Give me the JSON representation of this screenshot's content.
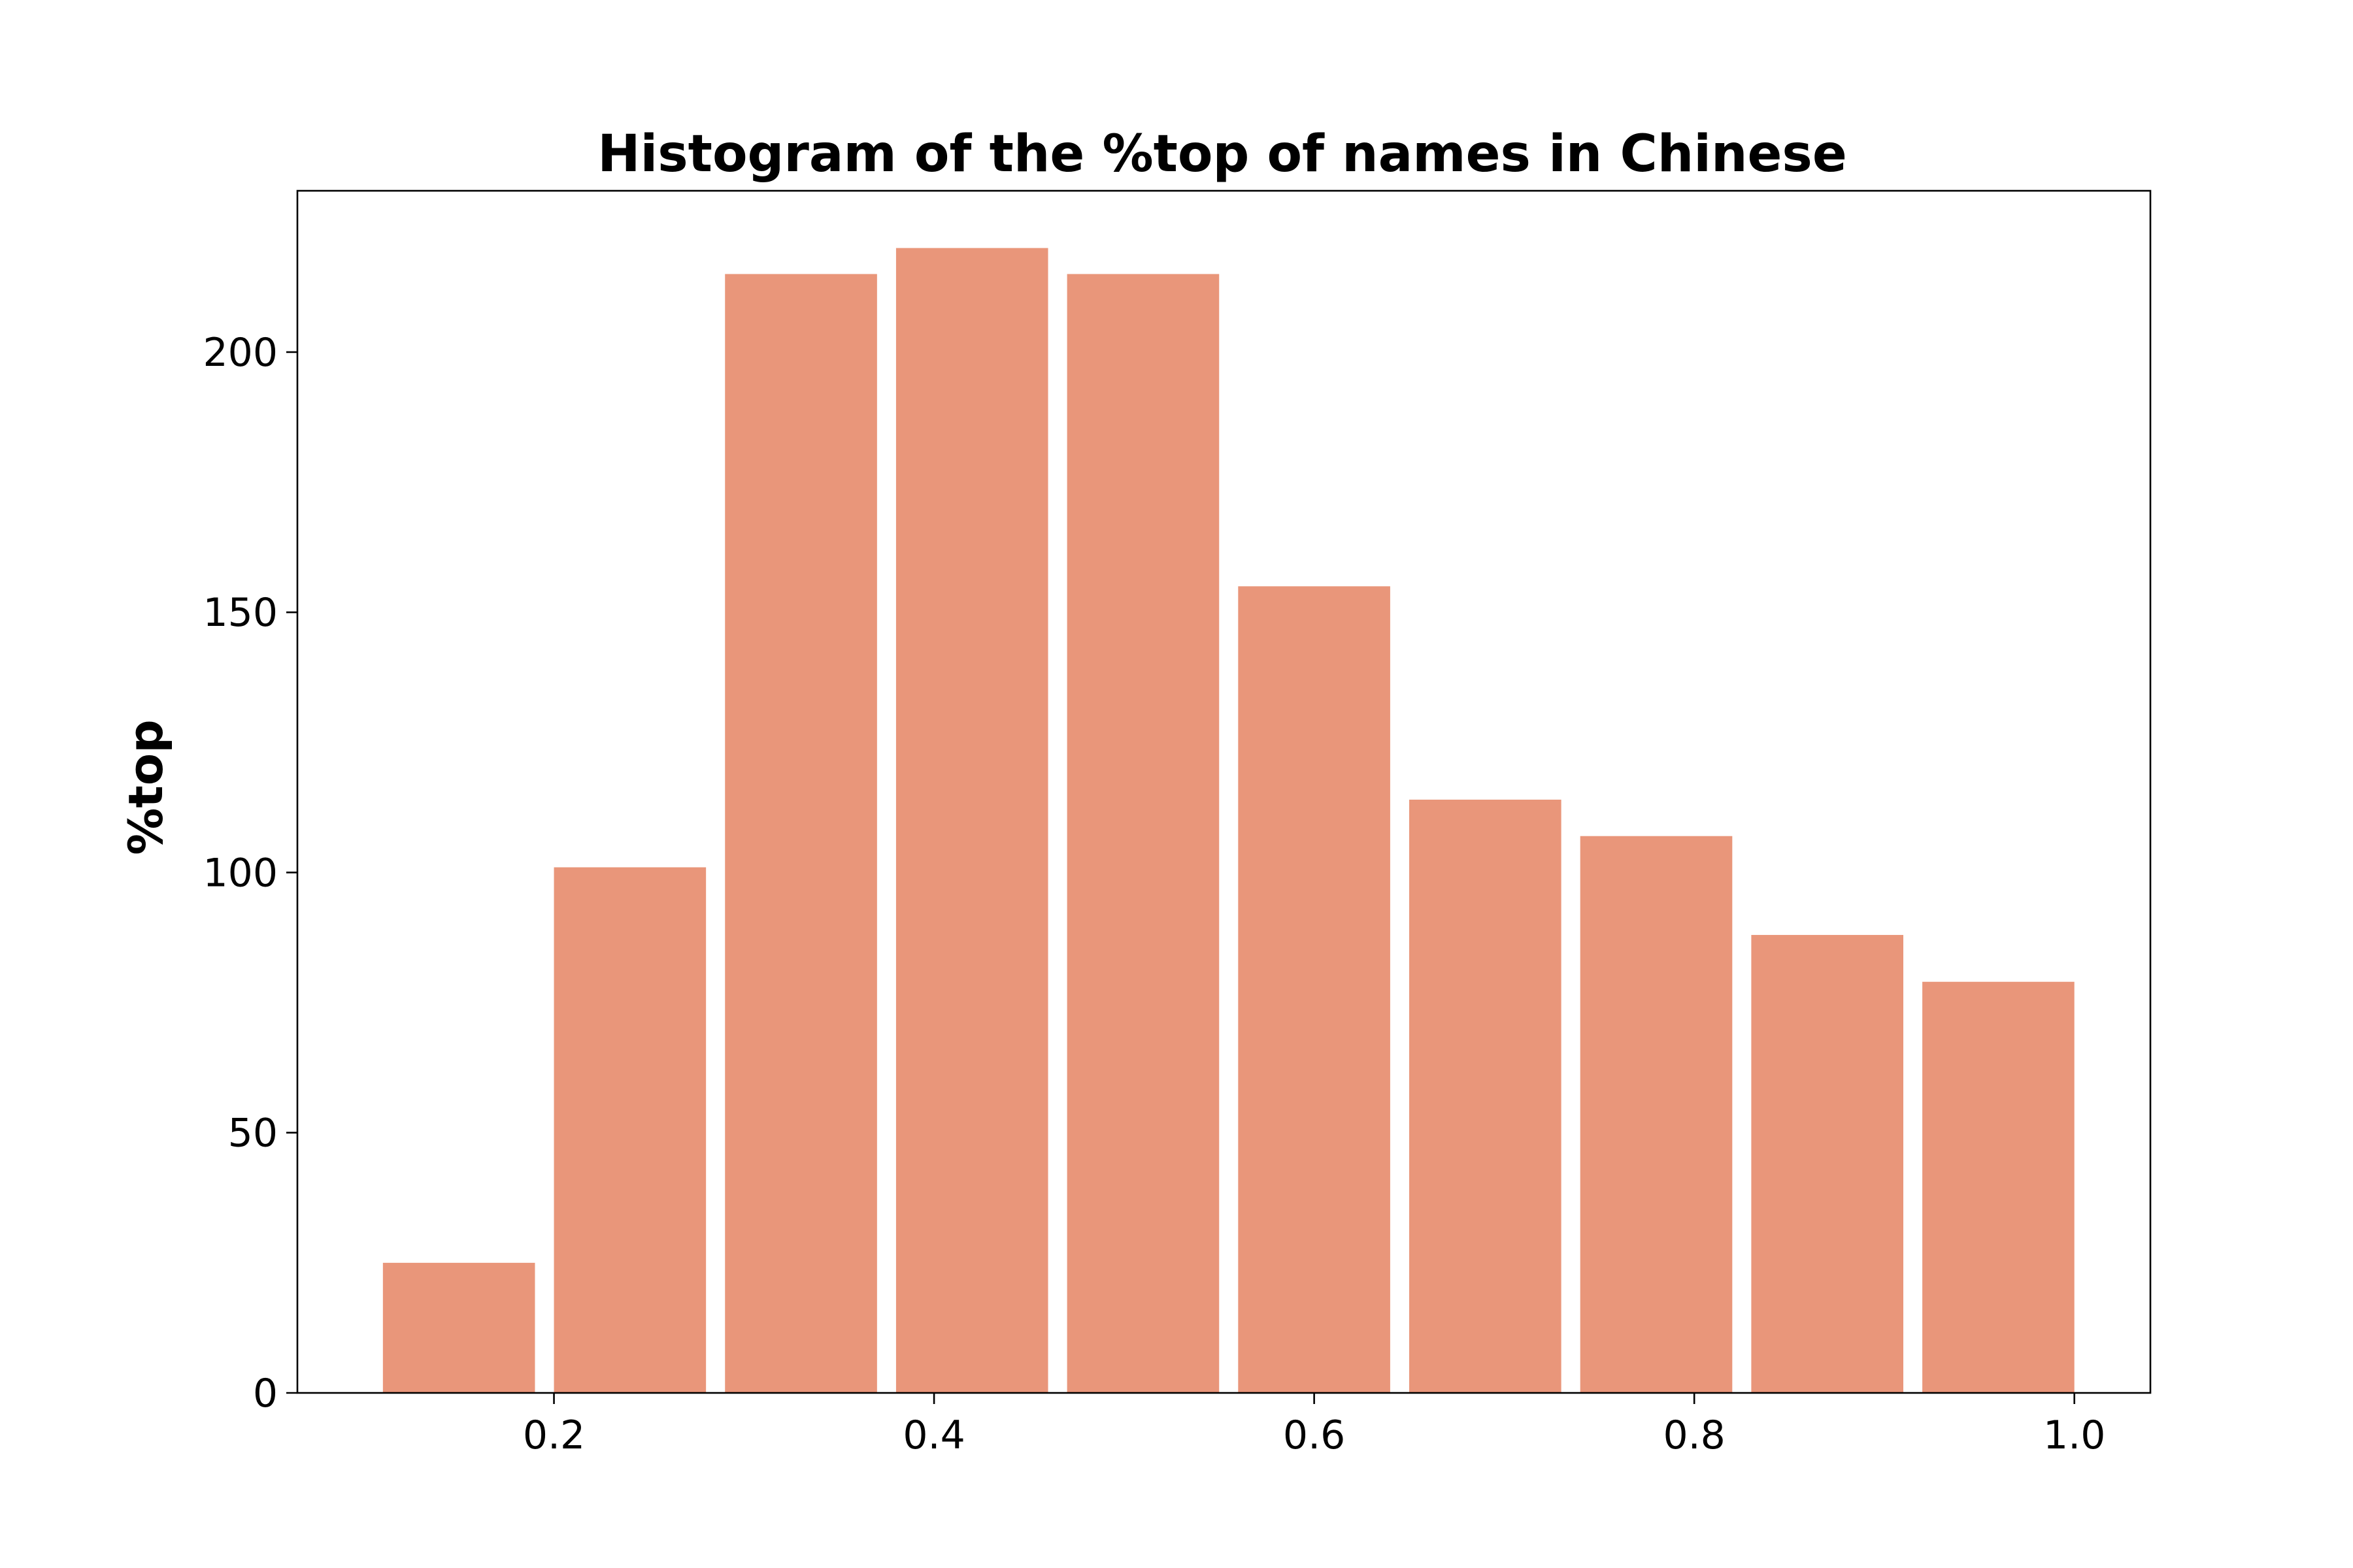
{
  "chart_data": {
    "type": "bar",
    "title": "Histogram of the %top of names in Chinese",
    "xlabel": "",
    "ylabel": "%top",
    "bins": [
      {
        "x0": 0.11,
        "x1": 0.19,
        "value": 25
      },
      {
        "x0": 0.2,
        "x1": 0.28,
        "value": 101
      },
      {
        "x0": 0.29,
        "x1": 0.37,
        "value": 215
      },
      {
        "x0": 0.38,
        "x1": 0.46,
        "value": 220
      },
      {
        "x0": 0.47,
        "x1": 0.55,
        "value": 215
      },
      {
        "x0": 0.56,
        "x1": 0.64,
        "value": 155
      },
      {
        "x0": 0.65,
        "x1": 0.73,
        "value": 114
      },
      {
        "x0": 0.74,
        "x1": 0.82,
        "value": 107
      },
      {
        "x0": 0.83,
        "x1": 0.91,
        "value": 88
      },
      {
        "x0": 0.92,
        "x1": 1.0,
        "value": 79
      }
    ],
    "xlim": [
      0.065,
      1.04
    ],
    "ylim": [
      0,
      231
    ],
    "xticks": [
      {
        "value": 0.2,
        "label": "0.2"
      },
      {
        "value": 0.4,
        "label": "0.4"
      },
      {
        "value": 0.6,
        "label": "0.6"
      },
      {
        "value": 0.8,
        "label": "0.8"
      },
      {
        "value": 1.0,
        "label": "1.0"
      }
    ],
    "yticks": [
      {
        "value": 0,
        "label": "0"
      },
      {
        "value": 50,
        "label": "50"
      },
      {
        "value": 100,
        "label": "100"
      },
      {
        "value": 150,
        "label": "150"
      },
      {
        "value": 200,
        "label": "200"
      }
    ],
    "bar_color": "#e9967a",
    "grid": false,
    "legend": "none"
  }
}
